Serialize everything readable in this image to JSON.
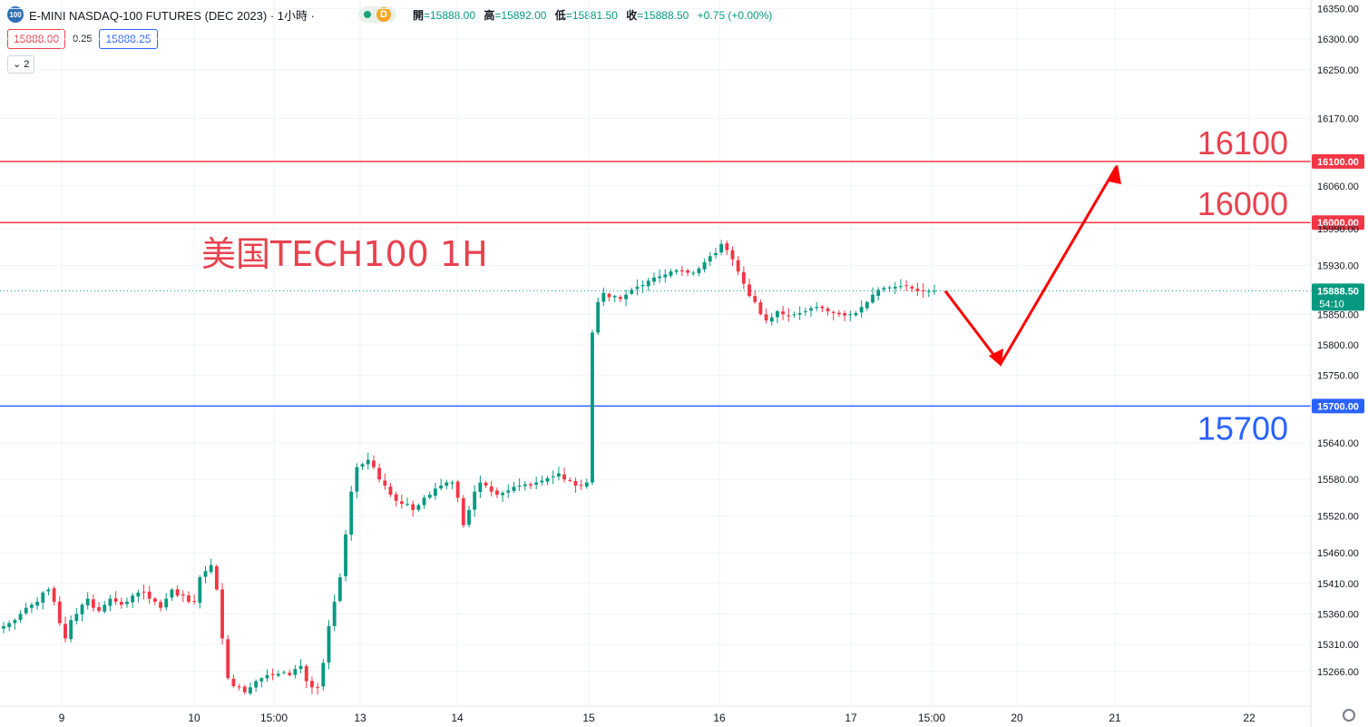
{
  "header": {
    "symbol_badge": "100",
    "title": "E-MINI NASDAQ-100 FUTURES (DEC 2023) · 1小時 ·",
    "session_badge": "D",
    "ohlc": [
      {
        "label": "開",
        "value": "=15888.00"
      },
      {
        "label": "高",
        "value": "=15892.00"
      },
      {
        "label": "低",
        "value": "=15881.50"
      },
      {
        "label": "收",
        "value": "=15888.50"
      }
    ],
    "change": "+0.75 (+0.00%)"
  },
  "quote": {
    "sell": "15888.00",
    "spread": "0.25",
    "buy": "15888.25"
  },
  "indicator_toggle": "2",
  "colors": {
    "up": "#089981",
    "down": "#f23645",
    "resistance": "#f23645",
    "support": "#2962ff",
    "arrow": "#ff0000",
    "annotation": "#e8424f"
  },
  "chart_data": {
    "type": "candlestick",
    "title": "",
    "ylim": [
      15236,
      16355
    ],
    "y_ticks": [
      "16350.00",
      "16300.00",
      "16250.00",
      "16170.00",
      "16060.00",
      "15990.00",
      "15930.00",
      "15850.00",
      "15800.00",
      "15750.00",
      "15640.00",
      "15580.00",
      "15520.00",
      "15460.00",
      "15410.00",
      "15360.00",
      "15310.00",
      "15266.00"
    ],
    "x_ticks": [
      "9",
      "10",
      "15:00",
      "13",
      "14",
      "15",
      "16",
      "17",
      "15:00",
      "20",
      "21",
      "22"
    ],
    "close_series": [
      15340,
      15345,
      15350,
      15360,
      15370,
      15375,
      15380,
      15395,
      15400,
      15380,
      15345,
      15320,
      15350,
      15360,
      15375,
      15385,
      15370,
      15365,
      15375,
      15385,
      15380,
      15375,
      15380,
      15390,
      15395,
      15395,
      15385,
      15380,
      15370,
      15385,
      15400,
      15390,
      15390,
      15380,
      15380,
      15420,
      15430,
      15440,
      15400,
      15320,
      15255,
      15242,
      15240,
      15232,
      15240,
      15250,
      15255,
      15260,
      15260,
      15262,
      15265,
      15260,
      15270,
      15275,
      15250,
      15240,
      15240,
      15280,
      15340,
      15380,
      15420,
      15490,
      15560,
      15600,
      15605,
      15612,
      15600,
      15580,
      15570,
      15555,
      15545,
      15540,
      15540,
      15530,
      15538,
      15550,
      15555,
      15565,
      15570,
      15575,
      15575,
      15550,
      15505,
      15530,
      15560,
      15575,
      15570,
      15560,
      15555,
      15558,
      15562,
      15568,
      15570,
      15572,
      15570,
      15575,
      15578,
      15582,
      15585,
      15590,
      15580,
      15578,
      15570,
      15570,
      15575,
      15820,
      15870,
      15885,
      15878,
      15880,
      15875,
      15882,
      15890,
      15895,
      15898,
      15905,
      15910,
      15912,
      15915,
      15920,
      15922,
      15920,
      15918,
      15918,
      15925,
      15935,
      15945,
      15950,
      15965,
      15955,
      15940,
      15920,
      15900,
      15880,
      15870,
      15850,
      15840,
      15845,
      15855,
      15850,
      15848,
      15850,
      15852,
      15855,
      15860,
      15862,
      15860,
      15855,
      15852,
      15850,
      15848,
      15850,
      15852,
      15862,
      15870,
      15882,
      15890,
      15893,
      15894,
      15895,
      15896,
      15897,
      15892,
      15888,
      15888,
      15888,
      15888.5
    ],
    "horizontal_lines": [
      {
        "label": "16100",
        "axis_label": "16100.00",
        "value": 16100,
        "role": "resistance"
      },
      {
        "label": "16000",
        "axis_label": "16000.00",
        "value": 16000,
        "role": "resistance"
      },
      {
        "label": "15700",
        "axis_label": "15700.00",
        "value": 15700,
        "role": "support"
      }
    ],
    "current_price": {
      "label": "15888.50",
      "countdown": "54:10",
      "value": 15888.5
    },
    "annotation": "美国TECH100 1H"
  }
}
